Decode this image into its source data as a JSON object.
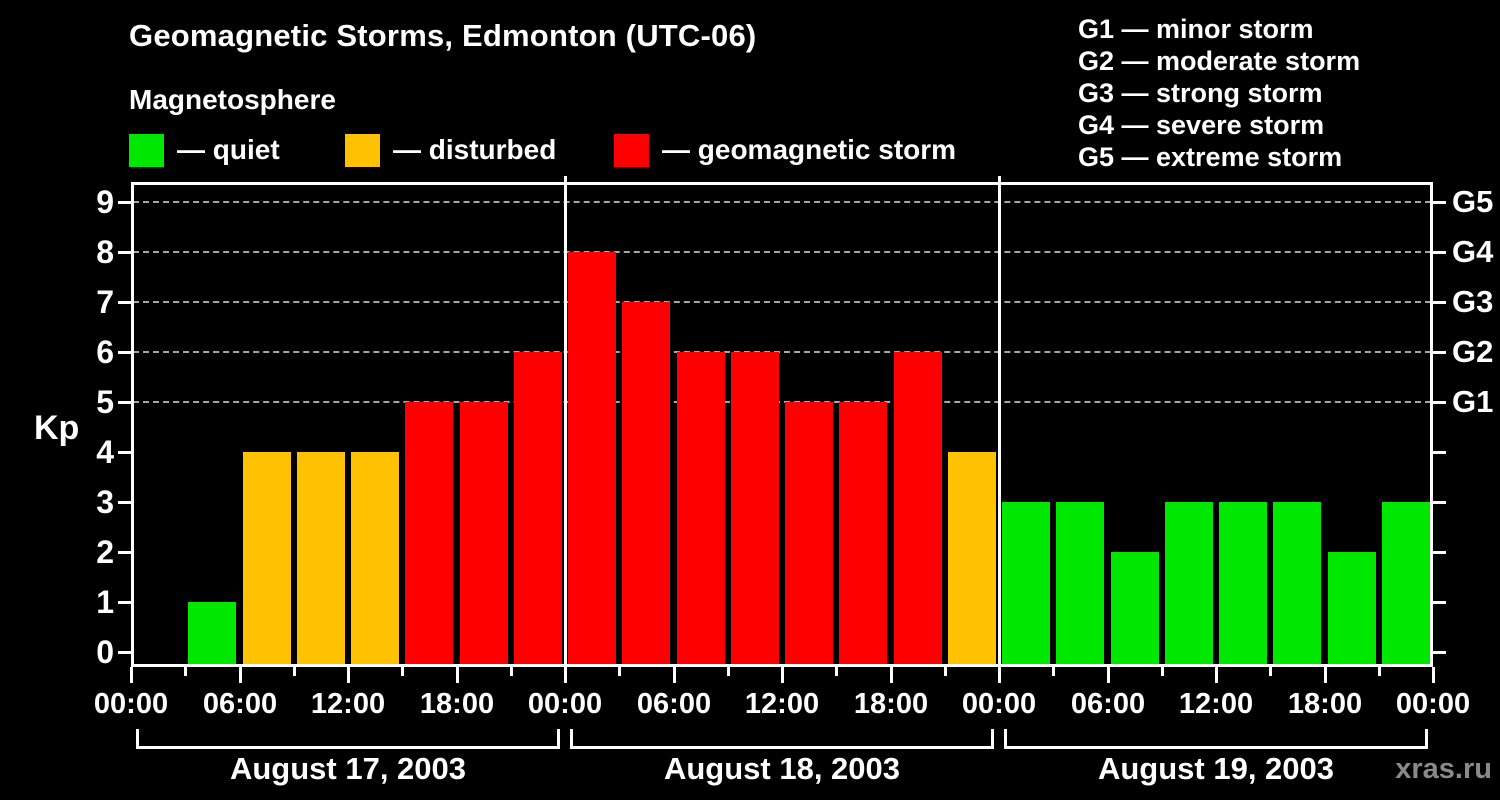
{
  "header": {
    "title": "Geomagnetic Storms, Edmonton (UTC-06)",
    "subtitle": "Magnetosphere"
  },
  "legend": {
    "items": [
      {
        "key": "quiet",
        "label": "— quiet",
        "color": "#00e800"
      },
      {
        "key": "disturbed",
        "label": "— disturbed",
        "color": "#ffc100"
      },
      {
        "key": "storm",
        "label": "— geomagnetic storm",
        "color": "#ff0000"
      }
    ]
  },
  "g_scale_legend": {
    "items": [
      "G1 — minor storm",
      "G2 — moderate storm",
      "G3 — strong storm",
      "G4 — severe storm",
      "G5 — extreme storm"
    ]
  },
  "watermark": "xras.ru",
  "chart_data": {
    "type": "bar",
    "title": "Geomagnetic Storms, Edmonton (UTC-06)",
    "subtitle": "Magnetosphere",
    "ylabel": "Kp",
    "ylim": [
      0,
      9.4
    ],
    "yticks": [
      0,
      1,
      2,
      3,
      4,
      5,
      6,
      7,
      8,
      9
    ],
    "gridline_values": [
      5,
      6,
      7,
      8,
      9
    ],
    "grid": "dashed-horizontal-at-storm-levels",
    "legend_position": "top-left",
    "colors": {
      "quiet": "#00e800",
      "disturbed": "#ffc100",
      "storm": "#ff0000"
    },
    "right_axis_labels": [
      {
        "label": "G1",
        "value": 5
      },
      {
        "label": "G2",
        "value": 6
      },
      {
        "label": "G3",
        "value": 7
      },
      {
        "label": "G4",
        "value": 8
      },
      {
        "label": "G5",
        "value": 9
      }
    ],
    "x_major_tick_labels": [
      "00:00",
      "06:00",
      "12:00",
      "18:00",
      "00:00",
      "06:00",
      "12:00",
      "18:00",
      "00:00",
      "06:00",
      "12:00",
      "18:00",
      "00:00"
    ],
    "x_minor_interval_hours": 3,
    "days": [
      {
        "date": "August 17, 2003",
        "bars": [
          {
            "time": "00:00",
            "kp": 0,
            "state": "none"
          },
          {
            "time": "03:00",
            "kp": 1,
            "state": "quiet"
          },
          {
            "time": "06:00",
            "kp": 4,
            "state": "disturbed"
          },
          {
            "time": "09:00",
            "kp": 4,
            "state": "disturbed"
          },
          {
            "time": "12:00",
            "kp": 4,
            "state": "disturbed"
          },
          {
            "time": "15:00",
            "kp": 5,
            "state": "storm"
          },
          {
            "time": "18:00",
            "kp": 5,
            "state": "storm"
          },
          {
            "time": "21:00",
            "kp": 6,
            "state": "storm"
          }
        ]
      },
      {
        "date": "August 18, 2003",
        "bars": [
          {
            "time": "00:00",
            "kp": 8,
            "state": "storm"
          },
          {
            "time": "03:00",
            "kp": 7,
            "state": "storm"
          },
          {
            "time": "06:00",
            "kp": 6,
            "state": "storm"
          },
          {
            "time": "09:00",
            "kp": 6,
            "state": "storm"
          },
          {
            "time": "12:00",
            "kp": 5,
            "state": "storm"
          },
          {
            "time": "15:00",
            "kp": 5,
            "state": "storm"
          },
          {
            "time": "18:00",
            "kp": 6,
            "state": "storm"
          },
          {
            "time": "21:00",
            "kp": 4,
            "state": "disturbed"
          }
        ]
      },
      {
        "date": "August 19, 2003",
        "bars": [
          {
            "time": "00:00",
            "kp": 3,
            "state": "quiet"
          },
          {
            "time": "03:00",
            "kp": 3,
            "state": "quiet"
          },
          {
            "time": "06:00",
            "kp": 2,
            "state": "quiet"
          },
          {
            "time": "09:00",
            "kp": 3,
            "state": "quiet"
          },
          {
            "time": "12:00",
            "kp": 3,
            "state": "quiet"
          },
          {
            "time": "15:00",
            "kp": 3,
            "state": "quiet"
          },
          {
            "time": "18:00",
            "kp": 2,
            "state": "quiet"
          },
          {
            "time": "21:00",
            "kp": 3,
            "state": "quiet"
          }
        ]
      }
    ]
  }
}
